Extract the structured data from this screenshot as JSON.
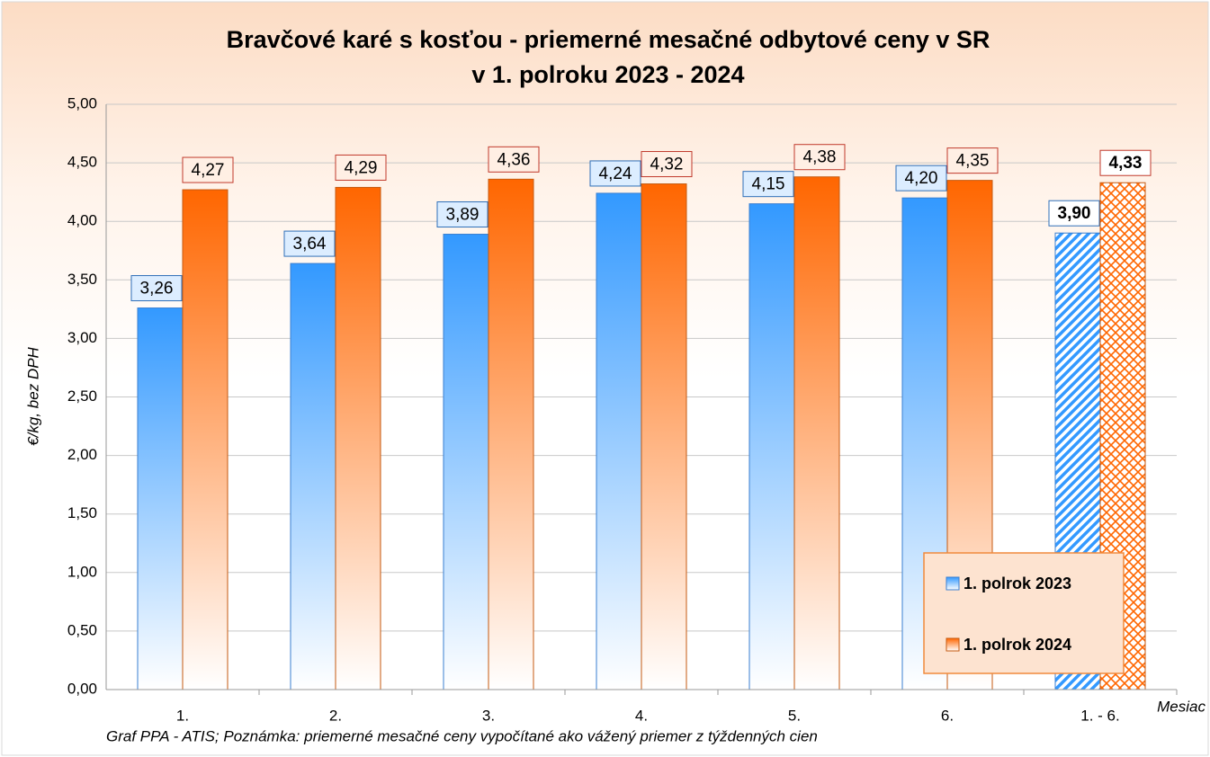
{
  "chart_data": {
    "type": "bar",
    "title": "Bravčové karé s kosťou - priemerné mesačné odbytové ceny v SR",
    "subtitle": "v 1. polroku 2023 - 2024",
    "y_label": "€/kg, bez DPH",
    "x_label": "Mesiac",
    "note": "Graf PPA - ATIS; Poznámka: priemerné mesačné ceny vypočítané ako vážený priemer z týždenných cien",
    "categories": [
      "1.",
      "2.",
      "3.",
      "4.",
      "5.",
      "6.",
      "1. - 6."
    ],
    "series": [
      {
        "name": "1. polrok 2023",
        "color": "#3399ff",
        "values": [
          3.26,
          3.64,
          3.89,
          4.24,
          4.15,
          4.2,
          3.9
        ],
        "value_labels": [
          "3,26",
          "3,64",
          "3,89",
          "4,24",
          "4,15",
          "4,20",
          "3,90"
        ]
      },
      {
        "name": "1. polrok 2024",
        "color": "#ff6600",
        "values": [
          4.27,
          4.29,
          4.36,
          4.32,
          4.38,
          4.35,
          4.33
        ],
        "value_labels": [
          "4,27",
          "4,29",
          "4,36",
          "4,32",
          "4,38",
          "4,35",
          "4,33"
        ]
      }
    ],
    "ylim": [
      0,
      5
    ],
    "yticks": [
      {
        "value": 0,
        "label": "0,00"
      },
      {
        "value": 0.5,
        "label": "0,50"
      },
      {
        "value": 1,
        "label": "1,00"
      },
      {
        "value": 1.5,
        "label": "1,50"
      },
      {
        "value": 2,
        "label": "2,00"
      },
      {
        "value": 2.5,
        "label": "2,50"
      },
      {
        "value": 3,
        "label": "3,00"
      },
      {
        "value": 3.5,
        "label": "3,50"
      },
      {
        "value": 4,
        "label": "4,00"
      },
      {
        "value": 4.5,
        "label": "4,50"
      },
      {
        "value": 5,
        "label": "5,00"
      }
    ],
    "grid": true,
    "legend": "lower right"
  }
}
